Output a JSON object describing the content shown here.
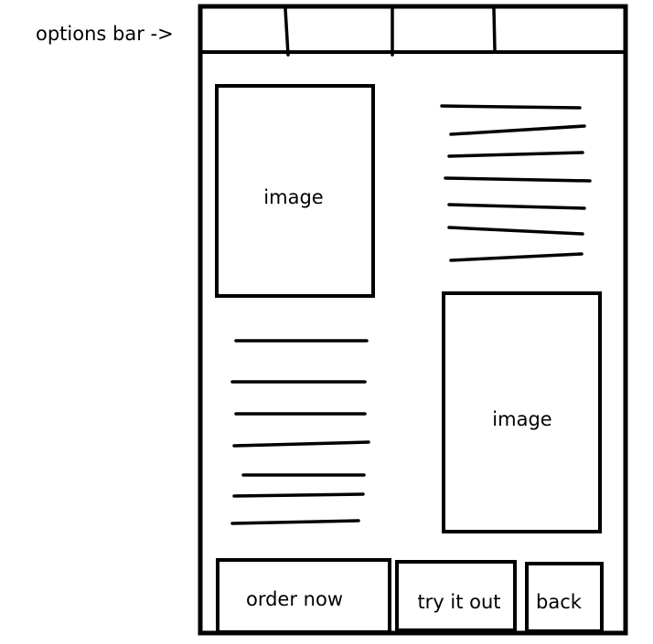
{
  "annotation": {
    "label": "options bar ->"
  },
  "options_bar": {
    "tabs": [
      "",
      "",
      "",
      ""
    ]
  },
  "content": {
    "image_1": {
      "label": "image"
    },
    "image_2": {
      "label": "image"
    }
  },
  "actions": {
    "order_now": "order now",
    "try_it_out": "try it out",
    "back": "back"
  },
  "colors": {
    "ink": "#000000",
    "paper": "#ffffff"
  }
}
